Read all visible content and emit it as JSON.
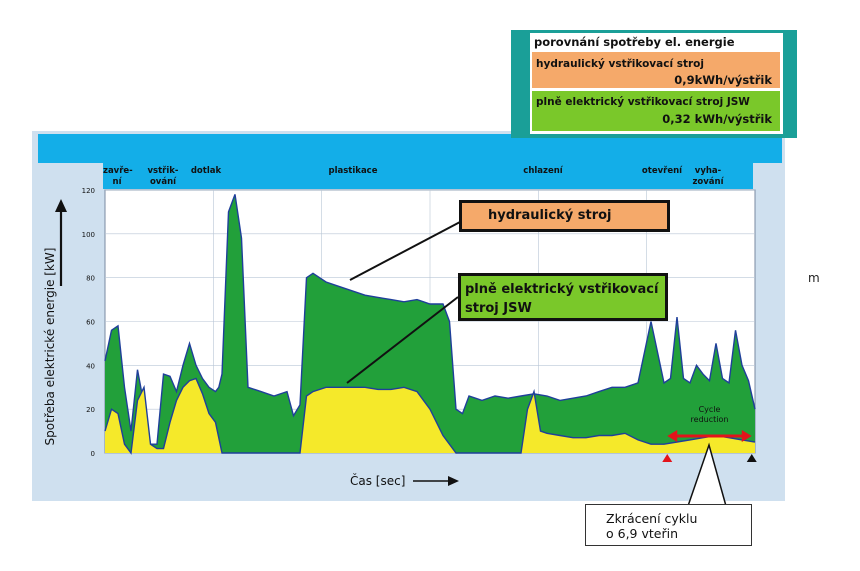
{
  "comparison": {
    "title": "porovnání spotřeby el. energie",
    "rows": [
      {
        "label": "hydraulický vstřikovací stroj",
        "value": "0,9kWh/výstřik",
        "color": "#f5a96a"
      },
      {
        "label": "plně elektrický vstřikovací stroj JSW",
        "value": "0,32 kWh/výstřik",
        "color": "#7ac82a"
      }
    ]
  },
  "phases": {
    "closing": "zavře-\nní",
    "injection": "vstřik-\nování",
    "holding": "dotlak",
    "plasticizing": "plastikace",
    "cooling": "chlazení",
    "opening": "otevření",
    "ejection": "vyha-\nzování"
  },
  "callouts": {
    "hydraulic": "hydraulický stroj",
    "electric": "plně elektrický vstřikovací\nstroj JSW",
    "cycle_reduction": "Cycle\nreduction",
    "savings": "Zkrácení cyklu\no 6,9 vteřin"
  },
  "stray_text": "m",
  "chart_data": {
    "type": "area",
    "xlabel": "Čas [sec]",
    "ylabel": "Spotřeba elektrické energie [kW]",
    "ylim": [
      0,
      120
    ],
    "yticks": [
      0,
      20,
      40,
      60,
      80,
      100,
      120
    ],
    "xlim": [
      0,
      100
    ],
    "grid": true,
    "series": [
      {
        "color": "#22a03a",
        "x": [
          0,
          1,
          2,
          3,
          4,
          5,
          6,
          7,
          8,
          9,
          10,
          11,
          12,
          13,
          14,
          15,
          16,
          17,
          17.5,
          18,
          19,
          20,
          21,
          22,
          24,
          26,
          28,
          29,
          30,
          31,
          32,
          34,
          36,
          38,
          40,
          42,
          44,
          46,
          48,
          50,
          52,
          53,
          54,
          55,
          56,
          57,
          58,
          60,
          62,
          64,
          66,
          68,
          70,
          72,
          74,
          76,
          78,
          80,
          82,
          84,
          85,
          86,
          87,
          88,
          89,
          90,
          91,
          92,
          93,
          94,
          95,
          96,
          97,
          98,
          99,
          100
        ],
        "y": [
          42,
          56,
          58,
          30,
          10,
          38,
          22,
          4,
          4,
          36,
          35,
          28,
          40,
          50,
          40,
          34,
          30,
          28,
          30,
          36,
          110,
          118,
          98,
          30,
          28,
          26,
          28,
          17,
          22,
          80,
          82,
          78,
          76,
          74,
          72,
          71,
          70,
          69,
          70,
          68,
          68,
          60,
          20,
          18,
          26,
          25,
          24,
          26,
          25,
          26,
          27,
          26,
          24,
          25,
          26,
          28,
          30,
          30,
          32,
          60,
          46,
          32,
          34,
          62,
          34,
          32,
          40,
          36,
          33,
          50,
          34,
          32,
          56,
          40,
          33,
          20
        ]
      },
      {
        "color": "#f5e92a",
        "x": [
          0,
          1,
          2,
          3,
          4,
          5,
          6,
          7,
          8,
          9,
          10,
          11,
          12,
          13,
          14,
          15,
          16,
          17,
          18,
          19,
          20,
          21,
          22,
          24,
          26,
          28,
          30,
          31,
          32,
          34,
          36,
          38,
          40,
          42,
          44,
          46,
          48,
          50,
          52,
          54,
          56,
          58,
          60,
          62,
          64,
          65,
          66,
          67,
          68,
          70,
          72,
          74,
          76,
          78,
          80,
          82,
          84,
          86,
          88,
          90,
          92,
          94,
          96,
          98,
          100
        ],
        "y": [
          10,
          20,
          18,
          4,
          0,
          24,
          30,
          4,
          2,
          2,
          14,
          24,
          30,
          33,
          34,
          27,
          18,
          14,
          0,
          0,
          0,
          0,
          0,
          0,
          0,
          0,
          0,
          26,
          28,
          30,
          30,
          30,
          30,
          29,
          29,
          30,
          28,
          20,
          8,
          0,
          0,
          0,
          0,
          0,
          0,
          20,
          28,
          10,
          9,
          8,
          7,
          7,
          8,
          8,
          9,
          6,
          4,
          4,
          5,
          6,
          7,
          8,
          7,
          6,
          5
        ]
      }
    ],
    "markers": [
      {
        "x": 86.5,
        "color": "#e3141b"
      },
      {
        "x": 99.5,
        "color": "#111111"
      }
    ],
    "reduction_arrow": {
      "from": 86.5,
      "to": 99.5,
      "color": "#e3141b"
    }
  }
}
